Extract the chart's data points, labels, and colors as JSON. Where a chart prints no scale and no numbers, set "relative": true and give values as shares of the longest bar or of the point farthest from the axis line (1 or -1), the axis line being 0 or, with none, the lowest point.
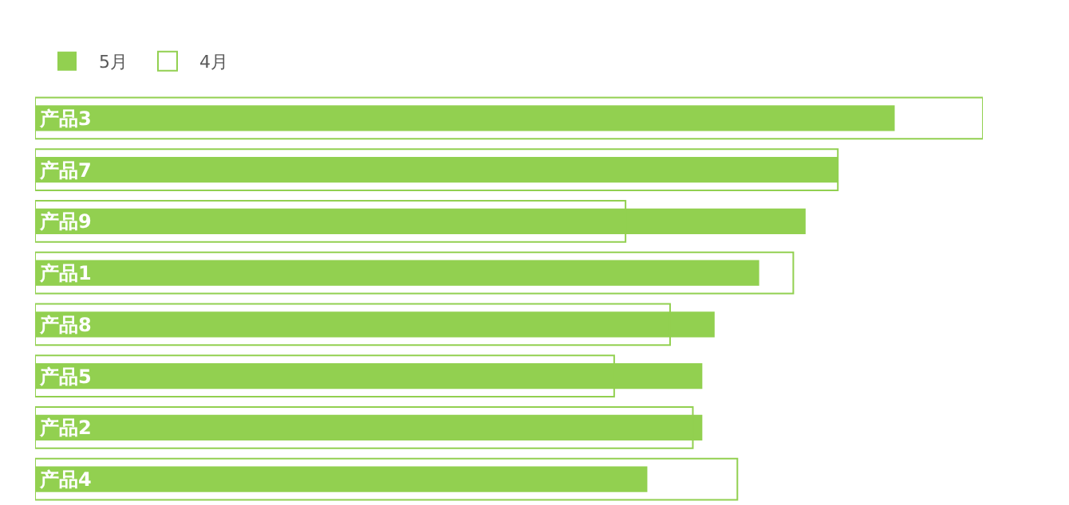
{
  "chart_data": {
    "type": "bar",
    "orientation": "horizontal",
    "relative": true,
    "legend": "top left",
    "categories": [
      "产品3",
      "产品7",
      "产品9",
      "产品1",
      "产品8",
      "产品5",
      "产品2",
      "产品4"
    ],
    "series": [
      {
        "name": "5月",
        "color": "#92d050",
        "values": [
          0.907,
          0.847,
          0.813,
          0.764,
          0.717,
          0.704,
          0.704,
          0.646
        ]
      },
      {
        "name": "4月",
        "color": "#92d050",
        "values": [
          1,
          0.847,
          0.623,
          0.8,
          0.67,
          0.611,
          0.694,
          0.741
        ]
      }
    ]
  }
}
